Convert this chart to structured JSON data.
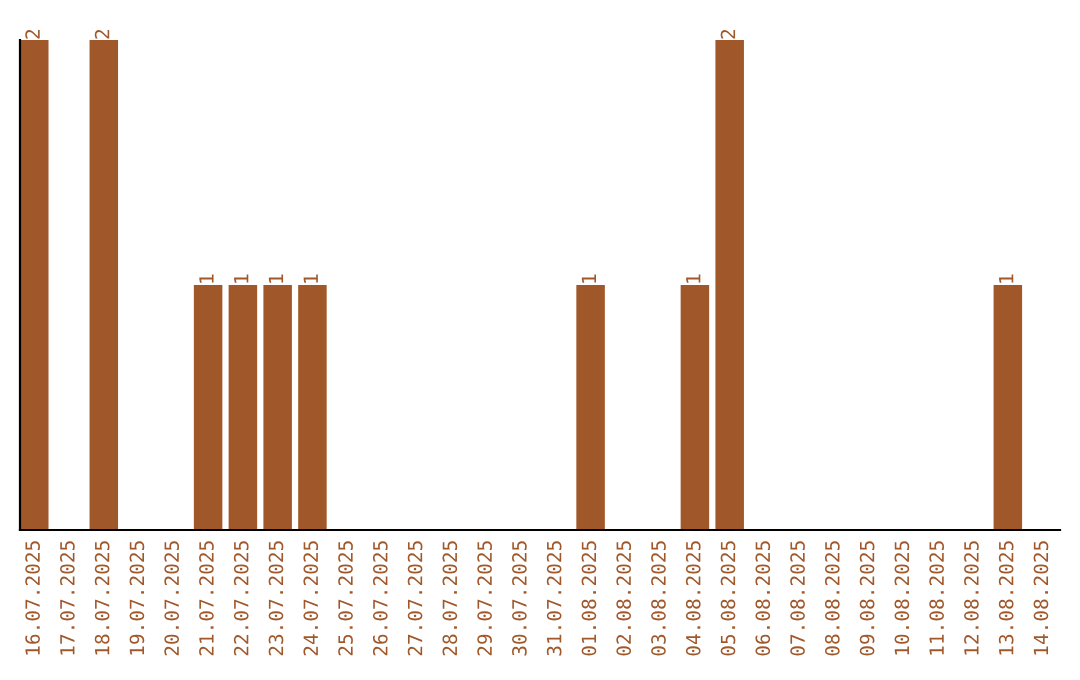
{
  "chart_data": {
    "type": "bar",
    "categories": [
      "16.07.2025",
      "17.07.2025",
      "18.07.2025",
      "19.07.2025",
      "20.07.2025",
      "21.07.2025",
      "22.07.2025",
      "23.07.2025",
      "24.07.2025",
      "25.07.2025",
      "26.07.2025",
      "27.07.2025",
      "28.07.2025",
      "29.07.2025",
      "30.07.2025",
      "31.07.2025",
      "01.08.2025",
      "02.08.2025",
      "03.08.2025",
      "04.08.2025",
      "05.08.2025",
      "06.08.2025",
      "07.08.2025",
      "08.08.2025",
      "09.08.2025",
      "10.08.2025",
      "11.08.2025",
      "12.08.2025",
      "13.08.2025",
      "14.08.2025"
    ],
    "values": [
      2,
      0,
      2,
      0,
      0,
      1,
      1,
      1,
      1,
      0,
      0,
      0,
      0,
      0,
      0,
      0,
      1,
      0,
      0,
      1,
      2,
      0,
      0,
      0,
      0,
      0,
      0,
      0,
      1,
      0
    ],
    "value_labels": [
      "2",
      null,
      "2",
      null,
      null,
      "1",
      "1",
      "1",
      "1",
      null,
      null,
      null,
      null,
      null,
      null,
      null,
      "1",
      null,
      null,
      "1",
      "2",
      null,
      null,
      null,
      null,
      null,
      null,
      null,
      "1",
      null
    ],
    "color": "#a0582a",
    "tick_labels": "x",
    "grid": false,
    "legend": false
  }
}
